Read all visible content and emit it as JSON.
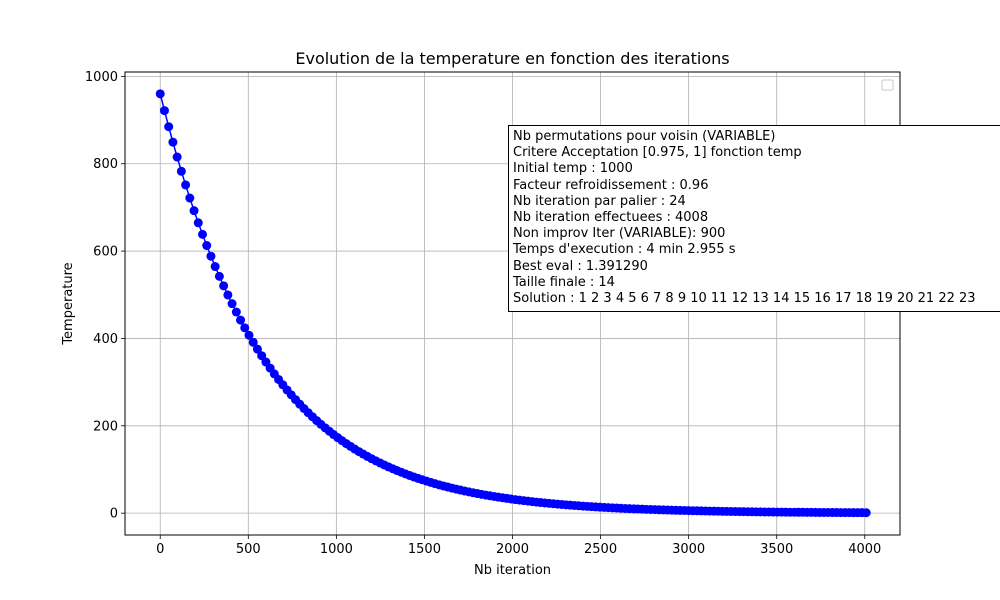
{
  "chart_data": {
    "type": "line",
    "title": "Evolution de la temperature en fonction des iterations",
    "xlabel": "Nb iteration",
    "ylabel": "Temperature",
    "xlim": [
      -200,
      4200
    ],
    "ylim": [
      -50,
      1010
    ],
    "xticks": [
      0,
      500,
      1000,
      1500,
      2000,
      2500,
      3000,
      3500,
      4000
    ],
    "yticks": [
      0,
      200,
      400,
      600,
      800,
      1000
    ],
    "grid": true,
    "legend": "top-right (empty)",
    "series": [
      {
        "color": "#0000ff",
        "marker": "circle",
        "x_start": 0,
        "x_step": 24,
        "x_end": 4008,
        "y_initial": 960,
        "y_factor": 0.96
      }
    ]
  },
  "info_box": [
    "Nb permutations pour voisin (VARIABLE)",
    "Critere Acceptation [0.975, 1] fonction temp",
    "Initial temp : 1000",
    "Facteur refroidissement : 0.96",
    "Nb iteration par palier : 24",
    "Nb iteration effectuees : 4008",
    "Non improv Iter (VARIABLE): 900",
    "Temps d'execution : 4 min 2.955 s",
    "Best eval : 1.391290",
    "Taille finale : 14",
    "Solution : 1 2 3 4 5 6 7 8 9 10 11 12 13 14 15 16 17 18 19 20 21 22 23"
  ]
}
